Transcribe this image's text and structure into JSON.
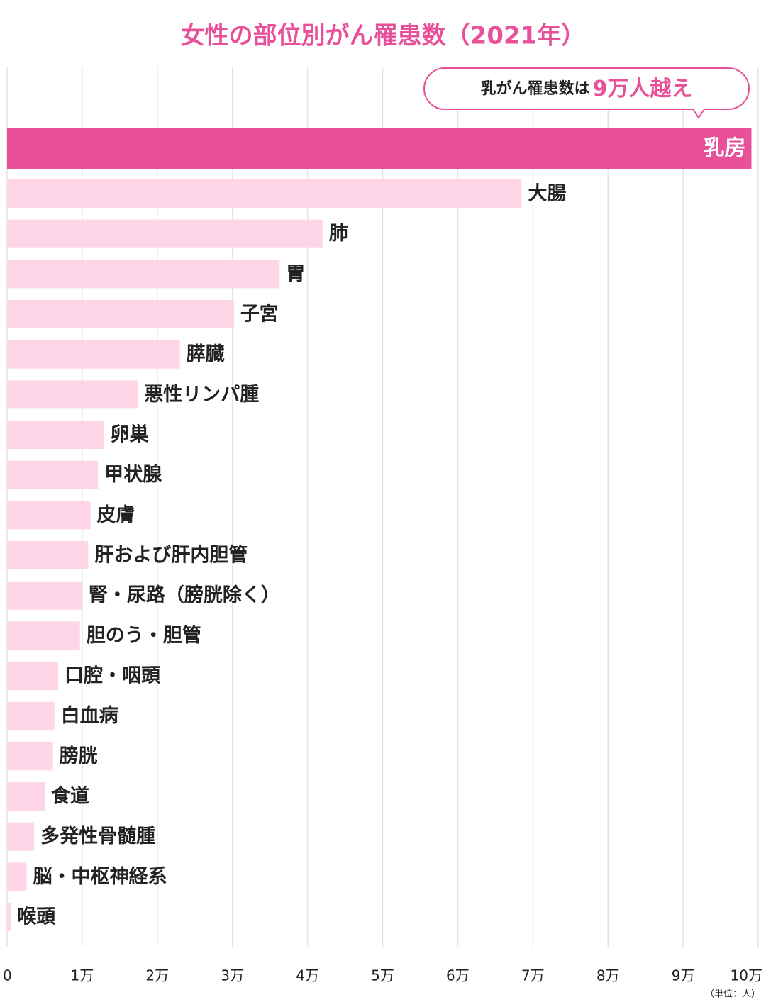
{
  "chart_data": {
    "type": "bar",
    "orientation": "horizontal",
    "title": "女性の部位別がん罹患数（2021年）",
    "callout": {
      "text": "乳がん罹患数は",
      "highlight": "9万人越え"
    },
    "unit_label": "（単位：人）",
    "categories": [
      "乳房",
      "大腸",
      "肺",
      "胃",
      "子宮",
      "膵臓",
      "悪性リンパ腫",
      "卵巣",
      "甲状腺",
      "皮膚",
      "肝および肝内胆管",
      "腎・尿路（膀胱除く）",
      "胆のう・胆管",
      "口腔・咽頭",
      "白血病",
      "膀胱",
      "食道",
      "多発性骨髄腫",
      "脳・中枢神経系",
      "喉頭"
    ],
    "values": [
      99100,
      68500,
      42000,
      36300,
      30200,
      23000,
      17400,
      12900,
      12100,
      11100,
      10800,
      10000,
      9700,
      6800,
      6300,
      6100,
      5000,
      3600,
      2600,
      500
    ],
    "colors": [
      "#e8509a",
      "#ffd6e8",
      "#ffd6e8",
      "#ffd6e8",
      "#ffd6e8",
      "#ffd6e8",
      "#ffd6e8",
      "#ffd6e8",
      "#ffd6e8",
      "#ffd6e8",
      "#ffd6e8",
      "#ffd6e8",
      "#ffd6e8",
      "#ffd6e8",
      "#ffd6e8",
      "#ffd6e8",
      "#ffd6e8",
      "#ffd6e8",
      "#ffd6e8",
      "#ffd6e8"
    ],
    "xlim": [
      0,
      100000
    ],
    "xticks": [
      {
        "value": 0,
        "label": "0"
      },
      {
        "value": 10000,
        "label": "1万"
      },
      {
        "value": 20000,
        "label": "2万"
      },
      {
        "value": 30000,
        "label": "3万"
      },
      {
        "value": 40000,
        "label": "4万"
      },
      {
        "value": 50000,
        "label": "5万"
      },
      {
        "value": 60000,
        "label": "6万"
      },
      {
        "value": 70000,
        "label": "7万"
      },
      {
        "value": 80000,
        "label": "8万"
      },
      {
        "value": 90000,
        "label": "9万"
      },
      {
        "value": 100000,
        "label": "10万"
      }
    ],
    "grid": true
  }
}
